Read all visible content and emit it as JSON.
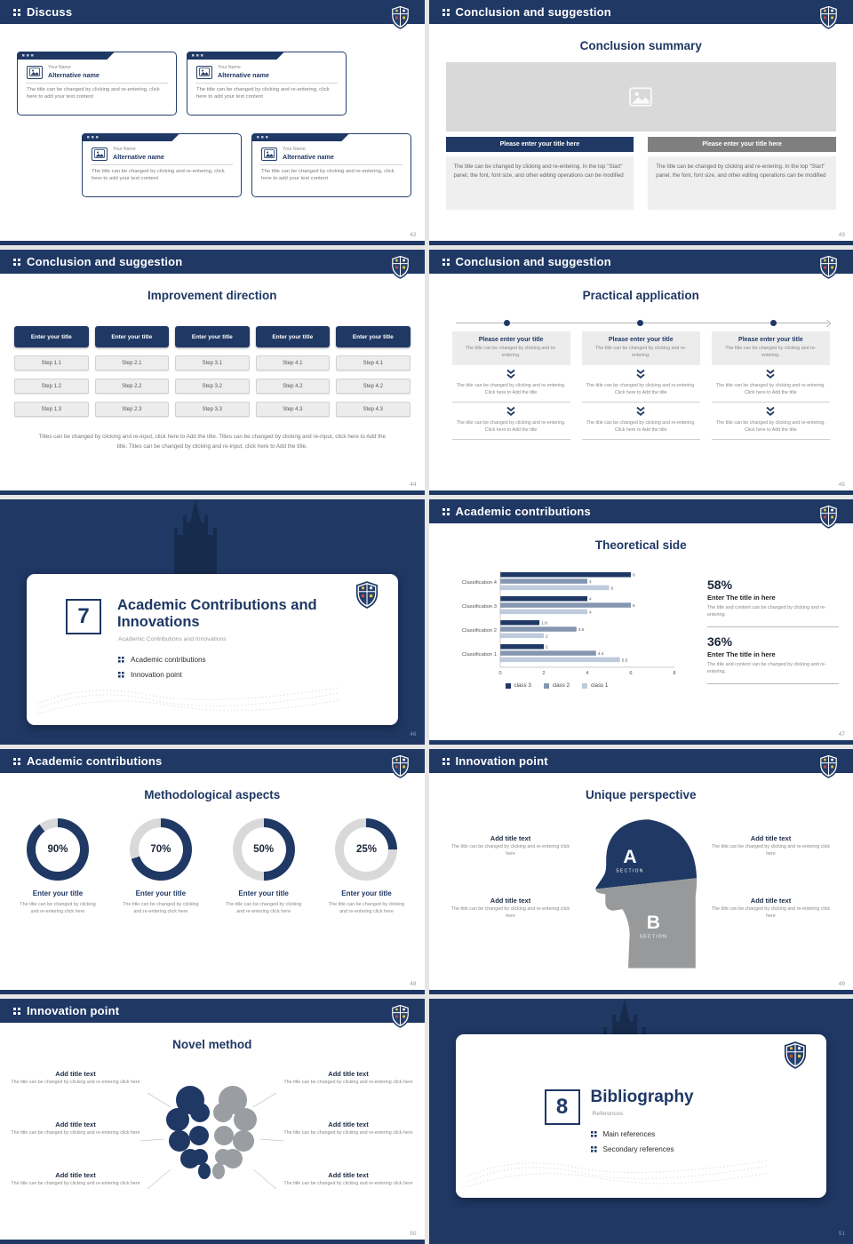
{
  "theme": {
    "navy": "#1f3864",
    "slate": "#8496b0",
    "light": "#becbdb",
    "track": "#d9d9d9"
  },
  "slides": {
    "discuss": {
      "header": "Discuss",
      "page": "42",
      "cards": [
        {
          "name": "Your Name",
          "alt": "Alternative name",
          "body": "The title can be changed by clicking and re-entering, click here to add your text content"
        },
        {
          "name": "Your Name",
          "alt": "Alternative name",
          "body": "The title can be changed by clicking and re-entering, click here to add your text content"
        },
        {
          "name": "Your Name",
          "alt": "Alternative name",
          "body": "The title can be changed by clicking and re-entering, click here to add your text content"
        },
        {
          "name": "Your Name",
          "alt": "Alternative name",
          "body": "The title can be changed by clicking and re-entering, click here to add your text content"
        }
      ]
    },
    "summary": {
      "header": "Conclusion and suggestion",
      "page": "43",
      "title": "Conclusion summary",
      "columns": [
        {
          "button": "Please enter your title here",
          "body": "The title can be changed by clicking and re-entering. In the top \"Start\" panel, the font, font size, and other editing operations can be modified"
        },
        {
          "button": "Please enter your title here",
          "body": "The title can be changed by clicking and re-entering. In the top \"Start\" panel, the font, font size, and other editing operations can be modified"
        }
      ]
    },
    "improvement": {
      "header": "Conclusion and suggestion",
      "page": "44",
      "title": "Improvement direction",
      "button": "Enter your title",
      "columns": [
        {
          "steps": [
            "Step 1.1",
            "Step 1.2",
            "Step 1.3"
          ]
        },
        {
          "steps": [
            "Step 2.1",
            "Step 2.2",
            "Step 2.3"
          ]
        },
        {
          "steps": [
            "Step 3.1",
            "Step 3.2",
            "Step 3.3"
          ]
        },
        {
          "steps": [
            "Step 4.1",
            "Step 4.2",
            "Step 4.3"
          ]
        },
        {
          "steps": [
            "Step 4.1",
            "Step 4.2",
            "Step 4.3"
          ]
        }
      ],
      "footer": "Titles can be changed by clicking and re-input, click here to Add the title. Titles can be changed by clicking and re-input, click here to Add the title. Titles can be changed by clicking and re-input, click here to Add the title."
    },
    "practical": {
      "header": "Conclusion and suggestion",
      "page": "45",
      "title": "Practical application",
      "box_title": "Please enter your title",
      "box_body": "The title can be changed by clicking and re-entering.",
      "step_text": "The title can be changed by clicking and re-entering. Click here to Add the title"
    },
    "cover7": {
      "page": "46",
      "number": "7",
      "title": "Academic Contributions and Innovations",
      "subtitle": "Academic Contributions and Innovations",
      "bullets": [
        "Academic contributions",
        "Innovation point"
      ]
    },
    "theoretical": {
      "header": "Academic contributions",
      "page": "47",
      "title": "Theoretical side",
      "chart_data": {
        "type": "bar",
        "orientation": "horizontal",
        "categories": [
          "Classification 4",
          "Classification 3",
          "Classification 2",
          "Classification 1"
        ],
        "series": [
          {
            "name": "class 3",
            "color": "#1f3864",
            "values": [
              6,
              4,
              1.8,
              2
            ]
          },
          {
            "name": "class 2",
            "color": "#8496b0",
            "values": [
              4,
              6,
              3.5,
              4.4
            ]
          },
          {
            "name": "class 1",
            "color": "#becbdb",
            "values": [
              5,
              4,
              2,
              5.5
            ]
          }
        ],
        "xlim": [
          0,
          8
        ],
        "xticks": [
          0,
          2,
          4,
          6,
          8
        ],
        "legend_position": "bottom",
        "grid": false
      },
      "stats": [
        {
          "value": "58%",
          "title": "Enter The title in here",
          "body": "The title and content can be changed by clicking and re-entering."
        },
        {
          "value": "36%",
          "title": "Enter The title in here",
          "body": "The title and content can be changed by clicking and re-entering."
        }
      ]
    },
    "methodological": {
      "header": "Academic contributions",
      "page": "48",
      "title": "Methodological aspects",
      "donuts": [
        {
          "percent": 90,
          "label": "90%",
          "title": "Enter your title",
          "body": "The title can be changed by clicking and re-entering click here"
        },
        {
          "percent": 70,
          "label": "70%",
          "title": "Enter your title",
          "body": "The title can be changed by clicking and re-entering click here"
        },
        {
          "percent": 50,
          "label": "50%",
          "title": "Enter your title",
          "body": "The title can be changed by clicking and re-entering click here"
        },
        {
          "percent": 25,
          "label": "25%",
          "title": "Enter your title",
          "body": "The title can be changed by clicking and re-entering click here"
        }
      ]
    },
    "unique": {
      "header": "Innovation point",
      "page": "49",
      "title": "Unique perspective",
      "sections": [
        {
          "letter": "A",
          "label": "SECTION"
        },
        {
          "letter": "B",
          "label": "SECTION"
        }
      ],
      "left": [
        {
          "title": "Add title text",
          "body": "The title can be changed by clicking and re-entering click here"
        },
        {
          "title": "Add title text",
          "body": "The title can be changed by clicking and re-entering click here"
        }
      ],
      "right": [
        {
          "title": "Add title text",
          "body": "The title can be changed by clicking and re-entering click here"
        },
        {
          "title": "Add title text",
          "body": "The title can be changed by clicking and re-entering click here"
        }
      ]
    },
    "novel": {
      "header": "Innovation point",
      "page": "50",
      "title": "Novel method",
      "left": [
        {
          "title": "Add title text",
          "body": "The title can be changed by clicking and re-entering click here"
        },
        {
          "title": "Add title text",
          "body": "The title can be changed by clicking and re-entering click here"
        },
        {
          "title": "Add title text",
          "body": "The title can be changed by clicking and re-entering click here"
        }
      ],
      "right": [
        {
          "title": "Add title text",
          "body": "The title can be changed by clicking and re-entering click here"
        },
        {
          "title": "Add title text",
          "body": "The title can be changed by clicking and re-entering click here"
        },
        {
          "title": "Add title text",
          "body": "The title can be changed by clicking and re-entering click here"
        }
      ]
    },
    "cover8": {
      "page": "51",
      "number": "8",
      "title": "Bibliography",
      "subtitle": "References",
      "bullets": [
        "Main references",
        "Secondary references"
      ]
    }
  }
}
